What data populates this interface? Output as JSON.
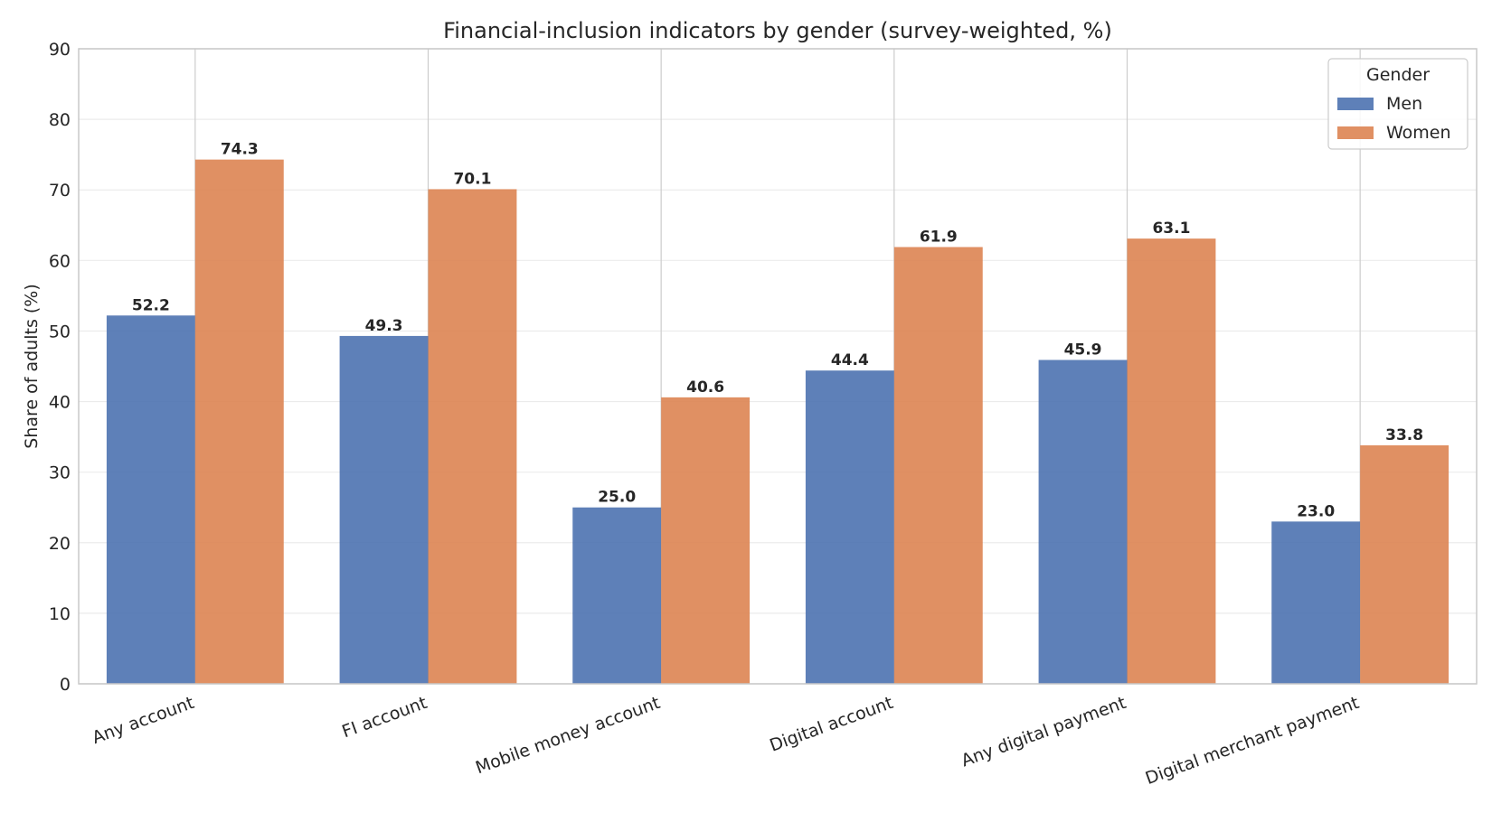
{
  "chart_data": {
    "type": "bar",
    "title": "Financial-inclusion indicators by gender (survey-weighted, %)",
    "xlabel": "",
    "ylabel": "Share of adults (%)",
    "ylim": [
      0,
      90
    ],
    "yticks": [
      0,
      10,
      20,
      30,
      40,
      50,
      60,
      70,
      80,
      90
    ],
    "categories": [
      "Any account",
      "FI account",
      "Mobile money account",
      "Digital account",
      "Any digital payment",
      "Digital merchant payment"
    ],
    "series": [
      {
        "name": "Men",
        "color": "#4c72b0",
        "values": [
          52.2,
          49.3,
          25.0,
          44.4,
          45.9,
          23.0
        ]
      },
      {
        "name": "Women",
        "color": "#dd8452",
        "values": [
          74.3,
          70.1,
          40.6,
          61.9,
          63.1,
          33.8
        ]
      }
    ],
    "value_labels": {
      "Men": [
        "52.2",
        "49.3",
        "25.0",
        "44.4",
        "45.9",
        "23.0"
      ],
      "Women": [
        "74.3",
        "70.1",
        "40.6",
        "61.9",
        "63.1",
        "33.8"
      ]
    },
    "legend": {
      "title": "Gender",
      "position": "top-right"
    },
    "grid": {
      "y": true,
      "x": true
    }
  }
}
